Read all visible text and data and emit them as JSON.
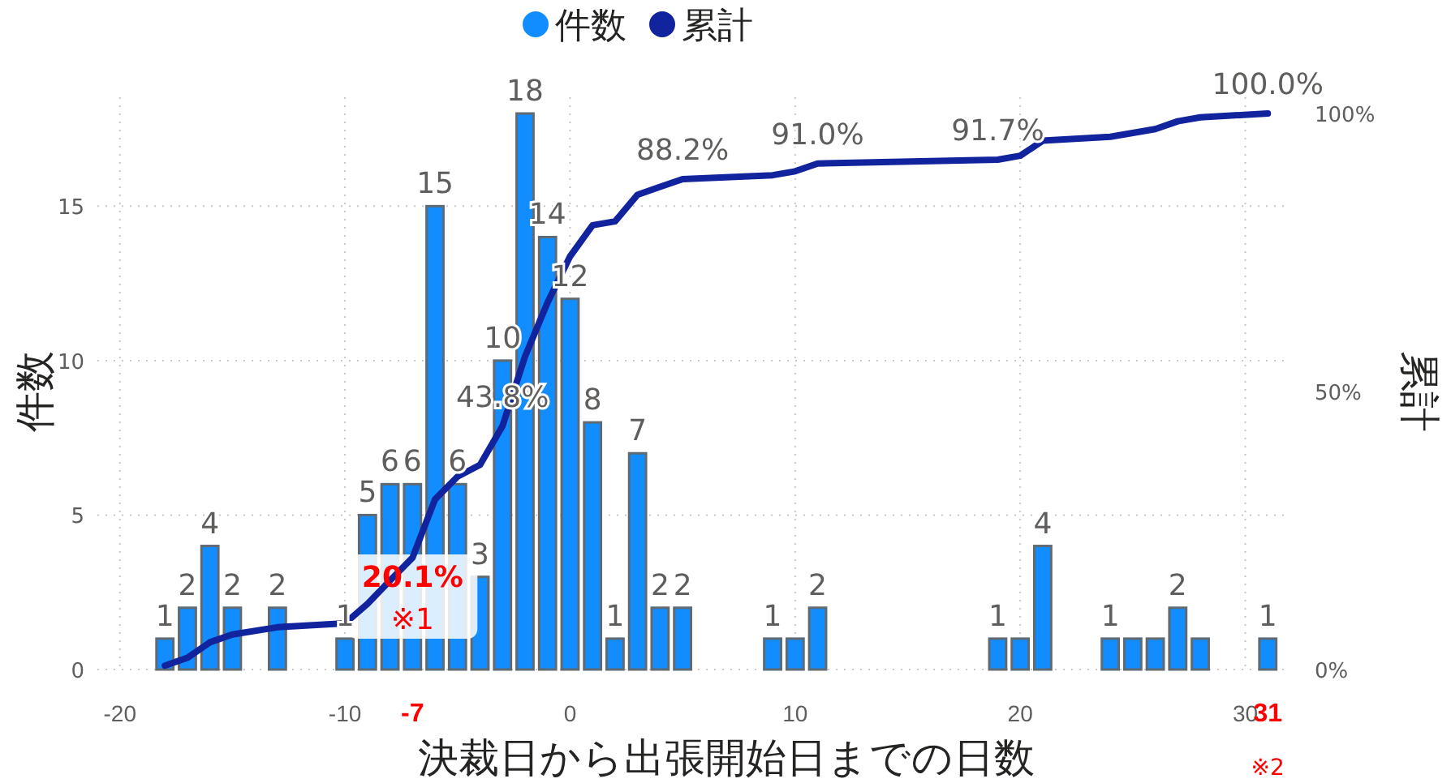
{
  "chart_data": {
    "type": "bar",
    "xlabel": "決裁日から出張開始日までの日数",
    "ylabel": "件数",
    "y2label": "累計",
    "legend": "top",
    "grid": true,
    "xlim": [
      -21,
      32
    ],
    "xticks": [
      -20,
      -10,
      {
        "value": -7,
        "label": "-7"
      },
      0,
      10,
      20,
      30,
      {
        "value": 31,
        "label": "31"
      }
    ],
    "ylim": [
      0,
      18
    ],
    "yticks": [
      0,
      5,
      10,
      15
    ],
    "y2lim": [
      0,
      100
    ],
    "y2ticks": [
      {
        "value": 0,
        "label": "0%"
      },
      {
        "value": 50,
        "label": "50%"
      },
      {
        "value": 100,
        "label": "100%"
      }
    ],
    "x": [
      -18,
      -17,
      -16,
      -15,
      -13,
      -10,
      -9,
      -8,
      -7,
      -6,
      -5,
      -4,
      -3,
      -2,
      -1,
      0,
      1,
      2,
      3,
      4,
      5,
      9,
      10,
      11,
      19,
      20,
      21,
      24,
      25,
      26,
      27,
      28,
      31
    ],
    "series": [
      {
        "name": "件数",
        "color": "#118dff",
        "values": [
          1,
          2,
          4,
          2,
          2,
          1,
          5,
          6,
          6,
          15,
          6,
          3,
          10,
          18,
          14,
          12,
          8,
          1,
          7,
          2,
          2,
          1,
          1,
          2,
          1,
          1,
          4,
          1,
          1,
          1,
          2,
          1,
          1
        ],
        "value_labels": [
          "1",
          "2",
          "4",
          "2",
          "2",
          "1",
          "5",
          "6",
          "6",
          "15",
          "6",
          "3",
          "10",
          "18",
          "14",
          "12",
          "8",
          "1",
          "7",
          "2",
          "2",
          "1",
          null,
          "2",
          "1",
          null,
          "4",
          "1",
          null,
          null,
          "2",
          null,
          "1"
        ]
      },
      {
        "name": "累計",
        "type": "line",
        "axis": "y2",
        "color": "#12239e",
        "values": [
          0.7,
          2.1,
          4.9,
          6.3,
          7.6,
          8.3,
          11.8,
          16.0,
          20.1,
          30.6,
          34.7,
          36.8,
          43.8,
          56.3,
          66.0,
          74.3,
          79.9,
          80.6,
          85.4,
          86.8,
          88.2,
          88.9,
          89.6,
          91.0,
          91.7,
          92.4,
          95.1,
          95.8,
          96.5,
          97.2,
          98.6,
          99.3,
          100.0
        ],
        "value_labels": [
          null,
          null,
          null,
          null,
          null,
          null,
          null,
          null,
          "20.1%",
          null,
          null,
          null,
          "43.8%",
          null,
          null,
          null,
          null,
          null,
          null,
          null,
          "88.2%",
          null,
          null,
          "91.0%",
          "91.7%",
          null,
          null,
          null,
          null,
          null,
          null,
          null,
          "100.0%"
        ]
      }
    ],
    "annotations": [
      "※1",
      "※2"
    ]
  }
}
